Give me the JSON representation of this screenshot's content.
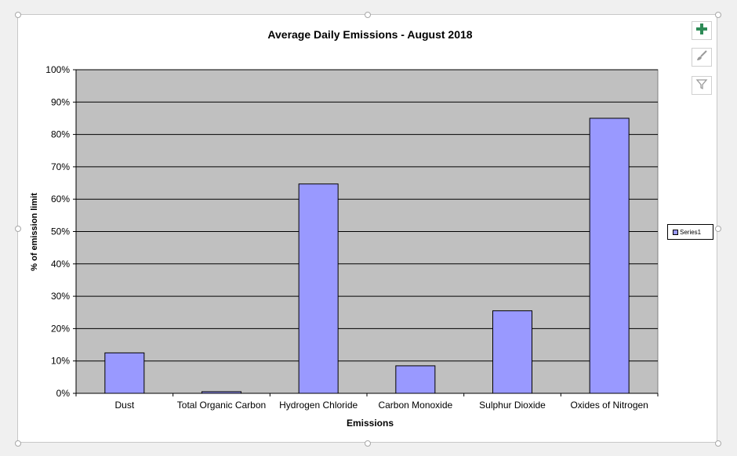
{
  "colors": {
    "bar": "#9999ff",
    "plot_area": "#c0c0c0",
    "gridline": "#000000",
    "add_icon": "#2e8b57"
  },
  "toolbar": {
    "add_element_icon": "plus-icon",
    "chart_styles_icon": "paintbrush-icon",
    "chart_filters_icon": "filter-icon"
  },
  "chart_data": {
    "type": "bar",
    "title": "Average Daily Emissions - August  2018",
    "xlabel": "Emissions",
    "ylabel": "% of emission limit",
    "categories": [
      "Dust",
      "Total Organic Carbon",
      "Hydrogen Chloride",
      "Carbon Monoxide",
      "Sulphur Dioxide",
      "Oxides of Nitrogen"
    ],
    "series": [
      {
        "name": "Series1",
        "values": [
          12.5,
          0.5,
          64.7,
          8.5,
          25.5,
          85.0
        ]
      }
    ],
    "ylim": [
      0,
      100
    ],
    "yticks": [
      "0%",
      "10%",
      "20%",
      "30%",
      "40%",
      "50%",
      "60%",
      "70%",
      "80%",
      "90%",
      "100%"
    ],
    "grid": true,
    "legend_position": "right"
  }
}
